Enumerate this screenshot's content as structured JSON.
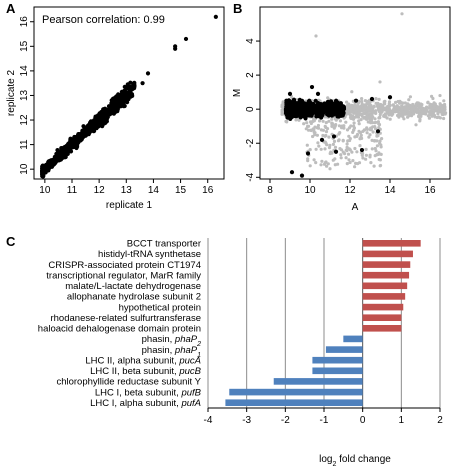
{
  "panels": {
    "a": "A",
    "b": "B",
    "c": "C"
  },
  "colors": {
    "up": "#c0504d",
    "down": "#4f81bd",
    "black": "#000000",
    "grey": "#bdbdbd"
  },
  "chart_data": [
    {
      "type": "scatter",
      "panel": "A",
      "annotation": "Pearson correlation: 0.99",
      "xlabel": "replicate 1",
      "ylabel": "replicate 2",
      "xlim": [
        9.6,
        16.6
      ],
      "ylim": [
        9.6,
        16.6
      ],
      "xticks": [
        10,
        11,
        12,
        13,
        14,
        15,
        16
      ],
      "yticks": [
        10,
        11,
        12,
        13,
        14,
        15,
        16
      ],
      "trend": {
        "from": 9.9,
        "to": 13.3,
        "spread": 0.12
      },
      "outliers": [
        [
          13.3,
          13.4
        ],
        [
          13.6,
          13.5
        ],
        [
          13.8,
          13.9
        ],
        [
          14.8,
          15.0
        ],
        [
          14.8,
          14.9
        ],
        [
          15.2,
          15.3
        ],
        [
          16.3,
          16.2
        ],
        [
          12.5,
          12.8
        ],
        [
          12.9,
          12.7
        ]
      ]
    },
    {
      "type": "scatter",
      "panel": "B",
      "xlabel": "A",
      "ylabel": "M",
      "xlim": [
        7.5,
        17
      ],
      "ylim": [
        -4.1,
        6
      ],
      "xticks": [
        8,
        10,
        12,
        14,
        16
      ],
      "yticks": [
        -4,
        -2,
        0,
        2,
        4
      ],
      "grey_outliers": [
        [
          14.6,
          5.6
        ],
        [
          10.3,
          4.3
        ],
        [
          13.5,
          1.6
        ],
        [
          11.0,
          -3.5
        ],
        [
          13.0,
          -2.8
        ],
        [
          16.5,
          0.8
        ],
        [
          15.5,
          -0.6
        ]
      ],
      "black_outliers": [
        [
          9.1,
          -3.7
        ],
        [
          9.6,
          -3.9
        ],
        [
          9.9,
          -2.6
        ],
        [
          11.2,
          -1.6
        ],
        [
          11.3,
          -2.5
        ],
        [
          12.3,
          0.5
        ],
        [
          12.6,
          -2.4
        ],
        [
          13.4,
          -1.3
        ],
        [
          13.1,
          0.6
        ],
        [
          14.0,
          0.7
        ],
        [
          10.6,
          -1.8
        ],
        [
          10.1,
          1.3
        ],
        [
          10.4,
          0.9
        ],
        [
          9.0,
          0.9
        ]
      ]
    },
    {
      "type": "bar",
      "orientation": "horizontal",
      "panel": "C",
      "xlabel_prefix": "log",
      "xlabel_sub": "2",
      "xlabel_suffix": " fold change",
      "xlim": [
        -4,
        2
      ],
      "xticks": [
        -4,
        -3,
        -2,
        -1,
        0,
        1,
        2
      ],
      "categories": [
        {
          "label": "BCCT transporter",
          "value": 1.5
        },
        {
          "label": "histidyl-tRNA synthetase",
          "value": 1.3
        },
        {
          "label": "CRISPR-associated protein CT1974",
          "value": 1.23
        },
        {
          "label": "transcriptional regulator, MarR family",
          "value": 1.2
        },
        {
          "label": "malate/L-lactate dehydrogenase",
          "value": 1.15
        },
        {
          "label": "allophanate hydrolase subunit 2",
          "value": 1.1
        },
        {
          "label": "hypothetical protein",
          "value": 1.05
        },
        {
          "label": "rhodanese-related sulfurtransferase",
          "value": 1.0
        },
        {
          "label": "haloacid dehalogenase domain protein",
          "value": 1.0
        },
        {
          "label": "phasin, ",
          "italic": "phaP",
          "sub": "2",
          "value": -0.5
        },
        {
          "label": "phasin, ",
          "italic": "phaP",
          "sub": "1",
          "value": -0.95
        },
        {
          "label": "LHC II, alpha subunit, ",
          "italic": "pucA",
          "value": -1.3
        },
        {
          "label": "LHC II, beta subunit, ",
          "italic": "pucB",
          "value": -1.3
        },
        {
          "label": "chlorophyllide reductase subunit Y",
          "value": -2.3
        },
        {
          "label": "LHC I, beta subunit, ",
          "italic": "pufB",
          "value": -3.45
        },
        {
          "label": "LHC I, alpha subunit, ",
          "italic": "pufA",
          "value": -3.55
        }
      ]
    }
  ]
}
